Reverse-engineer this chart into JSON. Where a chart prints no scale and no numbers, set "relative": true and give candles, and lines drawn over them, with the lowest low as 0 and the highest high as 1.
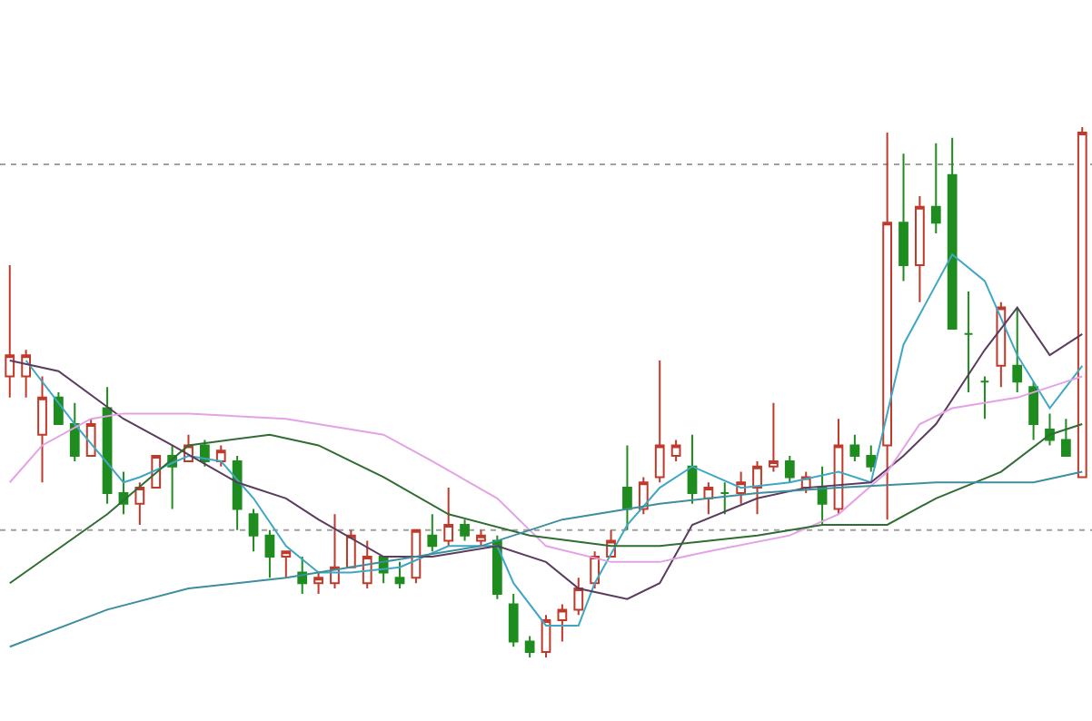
{
  "chart_data": {
    "type": "candlestick",
    "relative": true,
    "tick_labels": false,
    "categories": [
      null,
      null,
      null,
      null,
      null,
      null,
      null,
      null,
      null,
      null,
      null,
      null,
      null,
      null,
      null,
      null,
      null,
      null,
      null,
      null,
      null,
      null,
      null,
      null,
      null,
      null,
      null,
      null,
      null,
      null,
      null,
      null,
      null,
      null,
      null,
      null,
      null,
      null,
      null,
      null,
      null,
      null,
      null,
      null,
      null,
      null,
      null,
      null,
      null,
      null,
      null,
      null,
      null,
      null,
      null,
      null,
      null,
      null,
      null,
      null,
      null,
      null,
      null,
      null,
      null,
      null,
      null
    ],
    "ohlc": [
      [
        0.53,
        0.74,
        0.49,
        0.57
      ],
      [
        0.53,
        0.58,
        0.49,
        0.57
      ],
      [
        0.42,
        0.53,
        0.33,
        0.49
      ],
      [
        0.49,
        0.5,
        0.44,
        0.44
      ],
      [
        0.44,
        0.48,
        0.37,
        0.38
      ],
      [
        0.38,
        0.45,
        0.38,
        0.44
      ],
      [
        0.47,
        0.51,
        0.29,
        0.31
      ],
      [
        0.31,
        0.35,
        0.27,
        0.29
      ],
      [
        0.29,
        0.33,
        0.25,
        0.32
      ],
      [
        0.32,
        0.38,
        0.32,
        0.38
      ],
      [
        0.38,
        0.4,
        0.28,
        0.36
      ],
      [
        0.37,
        0.42,
        0.37,
        0.4
      ],
      [
        0.4,
        0.41,
        0.36,
        0.37
      ],
      [
        0.37,
        0.4,
        0.36,
        0.39
      ],
      [
        0.37,
        0.38,
        0.24,
        0.28
      ],
      [
        0.27,
        0.28,
        0.2,
        0.23
      ],
      [
        0.23,
        0.24,
        0.15,
        0.19
      ],
      [
        0.19,
        0.2,
        0.15,
        0.2
      ],
      [
        0.16,
        0.19,
        0.12,
        0.14
      ],
      [
        0.14,
        0.16,
        0.12,
        0.15
      ],
      [
        0.14,
        0.27,
        0.13,
        0.17
      ],
      [
        0.17,
        0.24,
        0.17,
        0.23
      ],
      [
        0.14,
        0.22,
        0.13,
        0.19
      ],
      [
        0.19,
        0.19,
        0.14,
        0.16
      ],
      [
        0.15,
        0.18,
        0.13,
        0.14
      ],
      [
        0.15,
        0.24,
        0.14,
        0.24
      ],
      [
        0.23,
        0.27,
        0.2,
        0.21
      ],
      [
        0.22,
        0.32,
        0.21,
        0.25
      ],
      [
        0.25,
        0.26,
        0.22,
        0.23
      ],
      [
        0.22,
        0.24,
        0.21,
        0.23
      ],
      [
        0.22,
        0.23,
        0.11,
        0.12
      ],
      [
        0.1,
        0.12,
        0.02,
        0.03
      ],
      [
        0.03,
        0.04,
        0.0,
        0.01
      ],
      [
        0.01,
        0.08,
        0.0,
        0.07
      ],
      [
        0.07,
        0.1,
        0.03,
        0.09
      ],
      [
        0.09,
        0.15,
        0.08,
        0.13
      ],
      [
        0.14,
        0.2,
        0.13,
        0.19
      ],
      [
        0.19,
        0.24,
        0.19,
        0.22
      ],
      [
        0.32,
        0.4,
        0.24,
        0.28
      ],
      [
        0.28,
        0.34,
        0.27,
        0.33
      ],
      [
        0.34,
        0.56,
        0.33,
        0.4
      ],
      [
        0.38,
        0.41,
        0.37,
        0.4
      ],
      [
        0.36,
        0.42,
        0.29,
        0.31
      ],
      [
        0.3,
        0.33,
        0.27,
        0.32
      ],
      [
        0.31,
        0.33,
        0.27,
        0.31
      ],
      [
        0.31,
        0.35,
        0.29,
        0.33
      ],
      [
        0.32,
        0.37,
        0.27,
        0.36
      ],
      [
        0.36,
        0.48,
        0.35,
        0.37
      ],
      [
        0.37,
        0.38,
        0.33,
        0.34
      ],
      [
        0.32,
        0.35,
        0.31,
        0.34
      ],
      [
        0.32,
        0.36,
        0.25,
        0.29
      ],
      [
        0.28,
        0.45,
        0.27,
        0.4
      ],
      [
        0.4,
        0.42,
        0.37,
        0.38
      ],
      [
        0.38,
        0.4,
        0.35,
        0.36
      ],
      [
        0.4,
        0.99,
        0.26,
        0.82
      ],
      [
        0.82,
        0.95,
        0.71,
        0.74
      ],
      [
        0.74,
        0.87,
        0.67,
        0.85
      ],
      [
        0.85,
        0.97,
        0.8,
        0.82
      ],
      [
        0.91,
        0.98,
        0.62,
        0.62
      ],
      [
        0.61,
        0.69,
        0.5,
        0.61
      ],
      [
        0.52,
        0.53,
        0.45,
        0.52
      ],
      [
        0.55,
        0.67,
        0.51,
        0.66
      ],
      [
        0.55,
        0.66,
        0.5,
        0.52
      ],
      [
        0.51,
        0.52,
        0.41,
        0.44
      ],
      [
        0.43,
        0.46,
        0.4,
        0.41
      ],
      [
        0.41,
        0.45,
        0.38,
        0.38
      ],
      [
        0.34,
        1.0,
        0.34,
        0.99
      ]
    ],
    "colors": [
      "#c0392b",
      "#c0392b",
      "#c0392b",
      "#1e8c1e",
      "#1e8c1e",
      "#c0392b",
      "#1e8c1e",
      "#1e8c1e",
      "#c0392b",
      "#c0392b",
      "#1e8c1e",
      "#c0392b",
      "#1e8c1e",
      "#c0392b",
      "#1e8c1e",
      "#1e8c1e",
      "#1e8c1e",
      "#c0392b",
      "#1e8c1e",
      "#c0392b",
      "#c0392b",
      "#c0392b",
      "#c0392b",
      "#1e8c1e",
      "#1e8c1e",
      "#c0392b",
      "#1e8c1e",
      "#c0392b",
      "#1e8c1e",
      "#c0392b",
      "#1e8c1e",
      "#1e8c1e",
      "#1e8c1e",
      "#c0392b",
      "#c0392b",
      "#c0392b",
      "#c0392b",
      "#c0392b",
      "#1e8c1e",
      "#c0392b",
      "#c0392b",
      "#c0392b",
      "#1e8c1e",
      "#c0392b",
      "#1e8c1e",
      "#c0392b",
      "#c0392b",
      "#c0392b",
      "#1e8c1e",
      "#c0392b",
      "#1e8c1e",
      "#c0392b",
      "#1e8c1e",
      "#1e8c1e",
      "#c0392b",
      "#1e8c1e",
      "#c0392b",
      "#1e8c1e",
      "#1e8c1e",
      "#1e8c1e",
      "#1e8c1e",
      "#c0392b",
      "#1e8c1e",
      "#1e8c1e",
      "#1e8c1e",
      "#1e8c1e",
      "#c0392b"
    ],
    "series": [
      {
        "type": "line",
        "color": "#3fa7c4",
        "values": [
          null,
          0.56,
          null,
          null,
          0.44,
          null,
          null,
          0.33,
          0.34,
          null,
          null,
          0.38,
          null,
          0.37,
          null,
          0.3,
          null,
          0.21,
          null,
          0.16,
          null,
          0.16,
          null,
          null,
          0.17,
          null,
          null,
          0.21,
          null,
          null,
          0.21,
          0.14,
          null,
          0.06,
          null,
          0.06,
          0.14,
          null,
          0.25,
          null,
          0.32,
          null,
          0.36,
          null,
          null,
          0.32,
          null,
          null,
          0.33,
          null,
          null,
          0.35,
          null,
          0.33,
          null,
          0.59,
          null,
          null,
          0.76,
          null,
          0.71,
          null,
          0.57,
          null,
          0.47,
          null,
          0.55
        ]
      },
      {
        "type": "line",
        "color": "#5b3b5e",
        "values": [
          0.56,
          null,
          null,
          0.54,
          null,
          null,
          null,
          0.45,
          null,
          null,
          0.4,
          null,
          null,
          null,
          0.33,
          null,
          null,
          0.3,
          null,
          0.26,
          null,
          null,
          null,
          0.19,
          null,
          null,
          0.19,
          null,
          null,
          null,
          0.21,
          null,
          null,
          0.18,
          null,
          0.13,
          null,
          null,
          0.11,
          null,
          0.14,
          null,
          0.25,
          null,
          null,
          null,
          0.3,
          null,
          null,
          0.32,
          null,
          null,
          null,
          0.33,
          null,
          0.38,
          null,
          0.44,
          null,
          null,
          0.58,
          null,
          0.66,
          null,
          0.57,
          null,
          0.61
        ]
      },
      {
        "type": "line",
        "color": "#e4a2e6",
        "values": [
          0.33,
          null,
          0.4,
          null,
          null,
          0.45,
          null,
          0.46,
          null,
          null,
          null,
          0.46,
          null,
          null,
          null,
          null,
          null,
          0.45,
          null,
          null,
          null,
          null,
          null,
          0.42,
          null,
          null,
          0.37,
          null,
          null,
          null,
          0.3,
          null,
          null,
          0.21,
          null,
          null,
          null,
          0.18,
          null,
          null,
          0.18,
          null,
          null,
          0.2,
          null,
          null,
          null,
          null,
          0.23,
          null,
          null,
          0.27,
          null,
          null,
          0.35,
          null,
          0.44,
          null,
          0.47,
          null,
          null,
          null,
          0.49,
          null,
          null,
          0.52,
          0.53
        ]
      },
      {
        "type": "line",
        "color": "#2f6d32",
        "values": [
          0.14,
          null,
          null,
          null,
          null,
          null,
          0.27,
          null,
          null,
          null,
          null,
          0.4,
          null,
          null,
          null,
          null,
          0.42,
          null,
          null,
          0.4,
          null,
          null,
          null,
          0.34,
          null,
          null,
          null,
          0.27,
          null,
          null,
          null,
          null,
          0.23,
          null,
          null,
          null,
          null,
          0.21,
          null,
          null,
          0.21,
          null,
          null,
          null,
          null,
          null,
          0.23,
          null,
          null,
          null,
          0.25,
          null,
          null,
          null,
          0.25,
          null,
          null,
          0.3,
          null,
          null,
          null,
          0.35,
          null,
          null,
          0.42,
          null,
          0.44
        ]
      },
      {
        "type": "line",
        "color": "#3d8e9e",
        "values": [
          0.02,
          null,
          null,
          null,
          null,
          null,
          0.09,
          null,
          null,
          null,
          null,
          0.13,
          null,
          null,
          null,
          null,
          null,
          0.15,
          null,
          null,
          null,
          null,
          null,
          0.18,
          null,
          null,
          null,
          null,
          null,
          0.21,
          null,
          null,
          null,
          null,
          0.26,
          null,
          null,
          null,
          null,
          null,
          0.29,
          null,
          null,
          null,
          null,
          null,
          0.31,
          null,
          null,
          null,
          null,
          0.32,
          null,
          null,
          null,
          null,
          null,
          0.33,
          null,
          null,
          null,
          null,
          null,
          0.33,
          null,
          null,
          0.35
        ]
      }
    ],
    "ref_lines": [
      {
        "axis": "y",
        "value": 0.93,
        "color": "#a0a0a0",
        "line_style": "dotted"
      },
      {
        "axis": "y",
        "value": 0.24,
        "color": "#a0a0a0",
        "line_style": "dotted"
      }
    ]
  }
}
